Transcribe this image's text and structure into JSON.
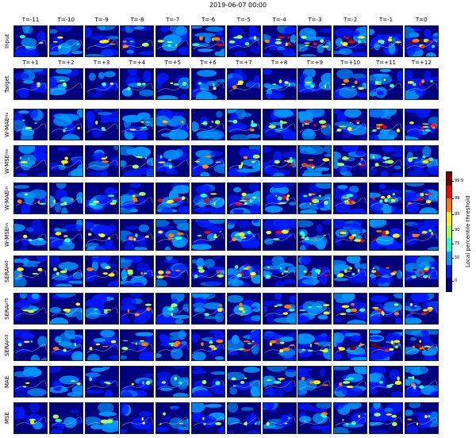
{
  "title": "2019-06-07 00:00",
  "input_time_labels": [
    "T=-11",
    "T=-10",
    "T=-9",
    "T=-8",
    "T=-7",
    "T=-6",
    "T=-5",
    "T=-4",
    "T=-3",
    "T=-2",
    "T=-1",
    "T=0"
  ],
  "target_time_labels": [
    "T=+1",
    "T=+2",
    "T=+3",
    "T=+4",
    "T=+5",
    "T=+6",
    "T=+7",
    "T=+8",
    "T=+9",
    "T=+10",
    "T=+11",
    "T=+12"
  ],
  "rows": [
    {
      "id": "input",
      "label": "Input",
      "sub": ""
    },
    {
      "id": "target",
      "label": "Target",
      "sub": ""
    },
    {
      "id": "w-mae-inv",
      "label": "W-MAE",
      "sub": "inv"
    },
    {
      "id": "w-mse-inv",
      "label": "W-MSE",
      "sub": "inv"
    },
    {
      "id": "w-mae-lin",
      "label": "W-MAE",
      "sub": "lin"
    },
    {
      "id": "w-mse-lin",
      "label": "W-MSE",
      "sub": "lin"
    },
    {
      "id": "sera-p60",
      "label": "SERA",
      "sub": "p60"
    },
    {
      "id": "sera-p75",
      "label": "SERA",
      "sub": "p75"
    },
    {
      "id": "sera-p50",
      "label": "SERA",
      "sub": "p50"
    },
    {
      "id": "mae",
      "label": "MAE",
      "sub": ""
    },
    {
      "id": "mse",
      "label": "MSE",
      "sub": ""
    }
  ],
  "colorbar": {
    "label": "Local percentile threshold",
    "ticks": [
      "0",
      "50",
      "75",
      "90",
      "95",
      "99",
      "99.9"
    ],
    "colors": [
      "#00007f",
      "#0019ff",
      "#0096ff",
      "#20ffd6",
      "#a4ff53",
      "#fff200",
      "#ff7a00",
      "#ff0000",
      "#7f0000"
    ]
  },
  "chart_data": {
    "type": "heatmap",
    "title": "2019-06-07 00:00",
    "rows": [
      "Input",
      "Target",
      "W-MAE inv",
      "W-MSE inv",
      "W-MAE lin",
      "W-MSE lin",
      "SERA p60",
      "SERA p75",
      "SERA p50",
      "MAE",
      "MSE"
    ],
    "columns_input": [
      "T=-11",
      "T=-10",
      "T=-9",
      "T=-8",
      "T=-7",
      "T=-6",
      "T=-5",
      "T=-4",
      "T=-3",
      "T=-2",
      "T=-1",
      "T=0"
    ],
    "columns_forecast": [
      "T=+1",
      "T=+2",
      "T=+3",
      "T=+4",
      "T=+5",
      "T=+6",
      "T=+7",
      "T=+8",
      "T=+9",
      "T=+10",
      "T=+11",
      "T=+12"
    ],
    "colorbar_label": "Local percentile threshold",
    "colorbar_ticks": [
      0,
      50,
      75,
      90,
      95,
      99,
      99.9
    ]
  }
}
